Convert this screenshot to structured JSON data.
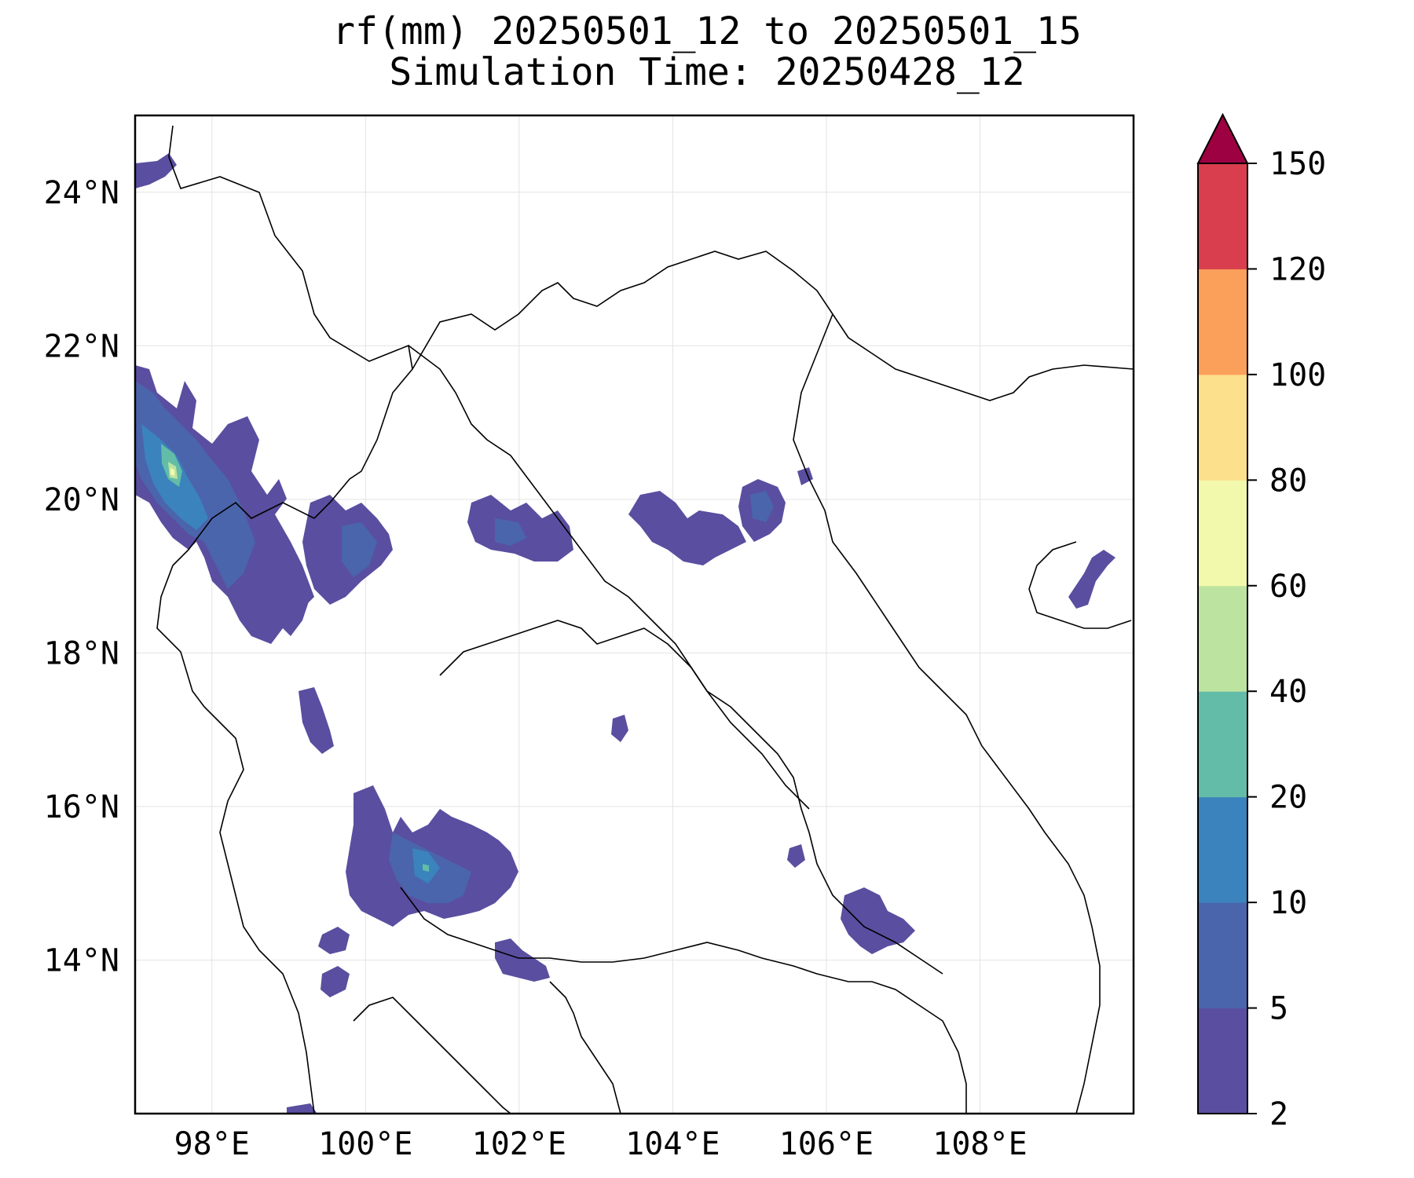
{
  "title": {
    "line1": "rf(mm) 20250501_12 to 20250501_15",
    "line2": "Simulation Time: 20250428_12"
  },
  "map": {
    "lon_range": [
      97,
      110
    ],
    "lat_range": [
      12,
      25
    ],
    "x_ticks": [
      "98°E",
      "100°E",
      "102°E",
      "104°E",
      "106°E",
      "108°E"
    ],
    "y_ticks": [
      "24°N",
      "22°N",
      "20°N",
      "18°N",
      "16°N",
      "14°N"
    ],
    "grid": true
  },
  "colorbar": {
    "levels": [
      "2",
      "5",
      "10",
      "20",
      "40",
      "60",
      "80",
      "100",
      "120",
      "150"
    ],
    "colors": [
      "#5a4ea0",
      "#4a65ac",
      "#3b83bc",
      "#62bca8",
      "#bde3a0",
      "#f3f9ac",
      "#fde08c",
      "#fba05b",
      "#d93e4e",
      "#9e0142"
    ],
    "extend": "max"
  },
  "chart_data": {
    "type": "heatmap",
    "variable": "rf(mm)",
    "levels": [
      2,
      5,
      10,
      20,
      40,
      60,
      80,
      100,
      120,
      150
    ],
    "regions": [
      {
        "lon": 97.4,
        "lat": 20.3,
        "max_level": 60
      },
      {
        "lon": 99.8,
        "lat": 19.2,
        "max_level": 20
      },
      {
        "lon": 102.0,
        "lat": 19.3,
        "max_level": 10
      },
      {
        "lon": 104.5,
        "lat": 19.7,
        "max_level": 10
      },
      {
        "lon": 101.0,
        "lat": 15.4,
        "max_level": 20
      },
      {
        "lon": 106.5,
        "lat": 14.4,
        "max_level": 5
      },
      {
        "lon": 109.5,
        "lat": 19.0,
        "max_level": 5
      }
    ]
  }
}
